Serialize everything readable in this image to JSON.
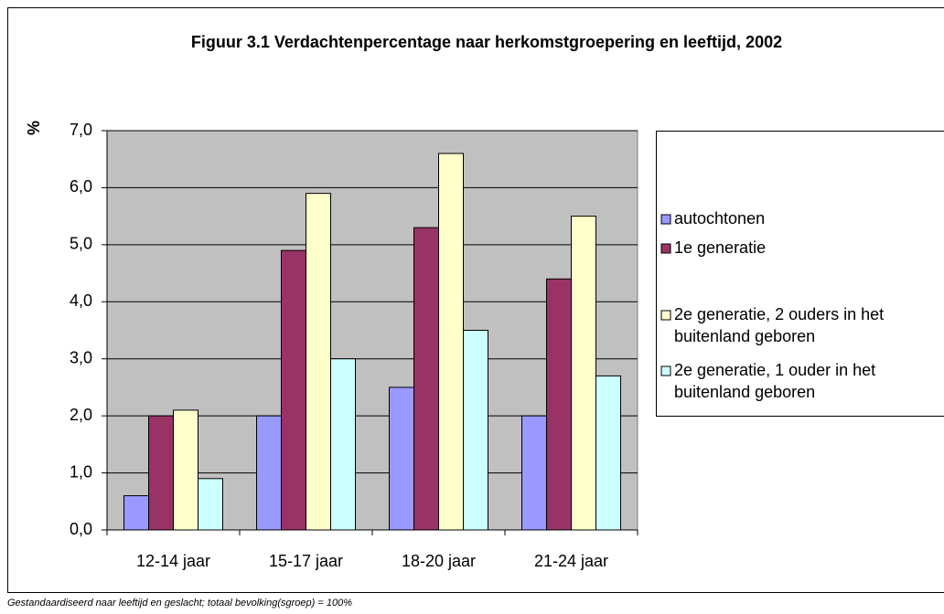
{
  "chart_data": {
    "type": "bar",
    "title": "Figuur 3.1 Verdachtenpercentage naar herkomstgroepering en leeftijd, 2002",
    "y_label": "%",
    "footnote": "Gestandaardiseerd naar leeftijd en geslacht; totaal bevolking(sgroep) = 100%",
    "categories": [
      "12-14 jaar",
      "15-17 jaar",
      "18-20 jaar",
      "21-24 jaar"
    ],
    "series": [
      {
        "name": "autochtonen",
        "color": "#9999ff",
        "values": [
          0.6,
          2.0,
          2.5,
          2.0
        ]
      },
      {
        "name": "1e generatie",
        "color": "#993366",
        "values": [
          2.0,
          4.9,
          5.3,
          4.4
        ]
      },
      {
        "name": "2e generatie, 2 ouders in het buitenland geboren",
        "color": "#ffffcc",
        "values": [
          2.1,
          5.9,
          6.6,
          5.5
        ]
      },
      {
        "name": "2e generatie, 1 ouder in het buitenland geboren",
        "color": "#ccffff",
        "values": [
          0.9,
          3.0,
          3.5,
          2.7
        ]
      }
    ],
    "ylim": [
      0,
      7
    ],
    "yticks": [
      {
        "value": 0,
        "label": "0,0"
      },
      {
        "value": 1,
        "label": "1,0"
      },
      {
        "value": 2,
        "label": "2,0"
      },
      {
        "value": 3,
        "label": "3,0"
      },
      {
        "value": 4,
        "label": "4,0"
      },
      {
        "value": 5,
        "label": "5,0"
      },
      {
        "value": 6,
        "label": "6,0"
      },
      {
        "value": 7,
        "label": "7,0"
      }
    ],
    "grid": true,
    "plot_background": "#c0c0c0",
    "legend": "right"
  }
}
